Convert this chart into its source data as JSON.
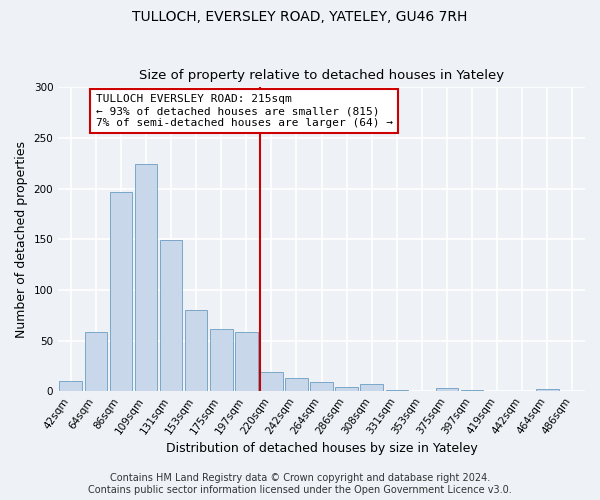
{
  "title": "TULLOCH, EVERSLEY ROAD, YATELEY, GU46 7RH",
  "subtitle": "Size of property relative to detached houses in Yateley",
  "xlabel": "Distribution of detached houses by size in Yateley",
  "ylabel": "Number of detached properties",
  "bar_labels": [
    "42sqm",
    "64sqm",
    "86sqm",
    "109sqm",
    "131sqm",
    "153sqm",
    "175sqm",
    "197sqm",
    "220sqm",
    "242sqm",
    "264sqm",
    "286sqm",
    "308sqm",
    "331sqm",
    "353sqm",
    "375sqm",
    "397sqm",
    "419sqm",
    "442sqm",
    "464sqm",
    "486sqm"
  ],
  "bar_values": [
    10,
    59,
    197,
    224,
    149,
    80,
    62,
    59,
    19,
    13,
    9,
    4,
    7,
    1,
    0,
    3,
    1,
    0,
    0,
    2,
    0
  ],
  "bar_color": "#c8d8ea",
  "bar_edgecolor": "#7aa8c8",
  "ylim": [
    0,
    300
  ],
  "yticks": [
    0,
    50,
    100,
    150,
    200,
    250,
    300
  ],
  "vline_color": "#cc0000",
  "annotation_title": "TULLOCH EVERSLEY ROAD: 215sqm",
  "annotation_line1": "← 93% of detached houses are smaller (815)",
  "annotation_line2": "7% of semi-detached houses are larger (64) →",
  "annotation_box_facecolor": "#ffffff",
  "annotation_box_edgecolor": "#cc0000",
  "footer1": "Contains HM Land Registry data © Crown copyright and database right 2024.",
  "footer2": "Contains public sector information licensed under the Open Government Licence v3.0.",
  "background_color": "#eef2f7",
  "grid_color": "#ffffff",
  "title_fontsize": 10,
  "subtitle_fontsize": 9.5,
  "axis_label_fontsize": 9,
  "tick_fontsize": 7.5,
  "annotation_fontsize": 8,
  "footer_fontsize": 7
}
